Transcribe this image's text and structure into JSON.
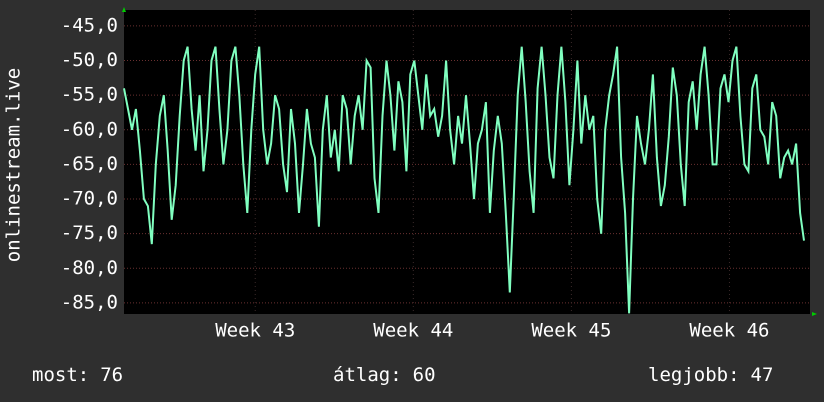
{
  "chart_data": {
    "type": "line",
    "ylabel": "onlinestream.live",
    "x": [
      0,
      4,
      8,
      12,
      16,
      20,
      24,
      28,
      32,
      36,
      40,
      44,
      48,
      52,
      56,
      60,
      64,
      68,
      72,
      76,
      80,
      84,
      88,
      92,
      96,
      100,
      104,
      108,
      112,
      116,
      120,
      124,
      128,
      132,
      136,
      140,
      144,
      148,
      152,
      156,
      160,
      164,
      168,
      172,
      176,
      180,
      184,
      188,
      192,
      196,
      200,
      204,
      208,
      212,
      216,
      220,
      224,
      228,
      232,
      236,
      240,
      244,
      248,
      252,
      256,
      260,
      264,
      268,
      272,
      276,
      280,
      284,
      288,
      292,
      296,
      300,
      304,
      308,
      312,
      316,
      320,
      324,
      328,
      332,
      336,
      340,
      344,
      348,
      352,
      356,
      360,
      364,
      368,
      372,
      376,
      380,
      384,
      388,
      392,
      396,
      400,
      404,
      408,
      412,
      416,
      420,
      424,
      428,
      432,
      436,
      440,
      444,
      448,
      452,
      456,
      460,
      464,
      468,
      472,
      476,
      480,
      484,
      488,
      492,
      496,
      500,
      504,
      508,
      512,
      516,
      520,
      524,
      528,
      532,
      536,
      540,
      544,
      548,
      552,
      556,
      560,
      564,
      568,
      572,
      576,
      580,
      584,
      588,
      592,
      596,
      600,
      604,
      608,
      612,
      616,
      620,
      624,
      628,
      632,
      636,
      640,
      644,
      648,
      652,
      656,
      660,
      664,
      668,
      672,
      676,
      680,
      684
    ],
    "series": [
      {
        "color": "#80ffc0",
        "values": [
          -54,
          -57,
          -60,
          -57,
          -63,
          -70,
          -71,
          -76.5,
          -65,
          -58,
          -55,
          -63,
          -73,
          -68,
          -58,
          -50,
          -48,
          -57,
          -63,
          -55,
          -66,
          -60,
          -50,
          -48,
          -57,
          -65,
          -60,
          -50,
          -48,
          -55,
          -65,
          -72,
          -60,
          -52,
          -48,
          -60,
          -65,
          -62,
          -55,
          -57,
          -65,
          -69,
          -57,
          -62,
          -72,
          -65,
          -57,
          -62,
          -64,
          -74,
          -60,
          -55,
          -64,
          -60,
          -66,
          -55,
          -57,
          -65,
          -58,
          -55,
          -60,
          -50,
          -51,
          -67,
          -72,
          -58,
          -50,
          -55,
          -63,
          -53,
          -56,
          -66,
          -52,
          -50,
          -55,
          -60,
          -52,
          -58,
          -57,
          -61,
          -58,
          -50,
          -60,
          -65,
          -58,
          -62,
          -55,
          -62,
          -70,
          -62,
          -60,
          -56,
          -72,
          -63,
          -58,
          -62,
          -72,
          -83.5,
          -70,
          -55,
          -48,
          -56,
          -66,
          -72,
          -54,
          -48,
          -55,
          -64,
          -67,
          -55,
          -48,
          -56,
          -68,
          -60,
          -50,
          -62,
          -55,
          -60,
          -58,
          -70,
          -75,
          -60,
          -55,
          -52,
          -48,
          -64,
          -72,
          -86.5,
          -70,
          -58,
          -62,
          -65,
          -60,
          -52,
          -64,
          -71,
          -68,
          -61,
          -51,
          -55,
          -65,
          -71,
          -56,
          -53,
          -60,
          -52,
          -48,
          -55,
          -65,
          -65,
          -54,
          -52,
          -56,
          -50,
          -48,
          -58,
          -65,
          -66,
          -54,
          -52,
          -60,
          -61,
          -65,
          -56,
          -58,
          -67,
          -64,
          -63,
          -65,
          -62,
          -72,
          -76
        ]
      }
    ],
    "xlim": [
      0,
      690
    ],
    "xticks": [
      {
        "value": 132,
        "label": "Week 43"
      },
      {
        "value": 291,
        "label": "Week 44"
      },
      {
        "value": 450,
        "label": "Week 45"
      },
      {
        "value": 609,
        "label": "Week 46"
      }
    ],
    "ylim": [
      -86.6,
      -42.7
    ],
    "yticks": [
      {
        "value": -45,
        "label": "-45,0"
      },
      {
        "value": -50,
        "label": "-50,0"
      },
      {
        "value": -55,
        "label": "-55,0"
      },
      {
        "value": -60,
        "label": "-60,0"
      },
      {
        "value": -65,
        "label": "-65,0"
      },
      {
        "value": -70,
        "label": "-70,0"
      },
      {
        "value": -75,
        "label": "-75,0"
      },
      {
        "value": -80,
        "label": "-80,0"
      },
      {
        "value": -85,
        "label": "-85,0"
      }
    ],
    "grid": true,
    "stats": [
      {
        "label": "most:",
        "value": 76
      },
      {
        "label": "átlag:",
        "value": 60
      },
      {
        "label": "legjobb:",
        "value": 47
      }
    ]
  }
}
